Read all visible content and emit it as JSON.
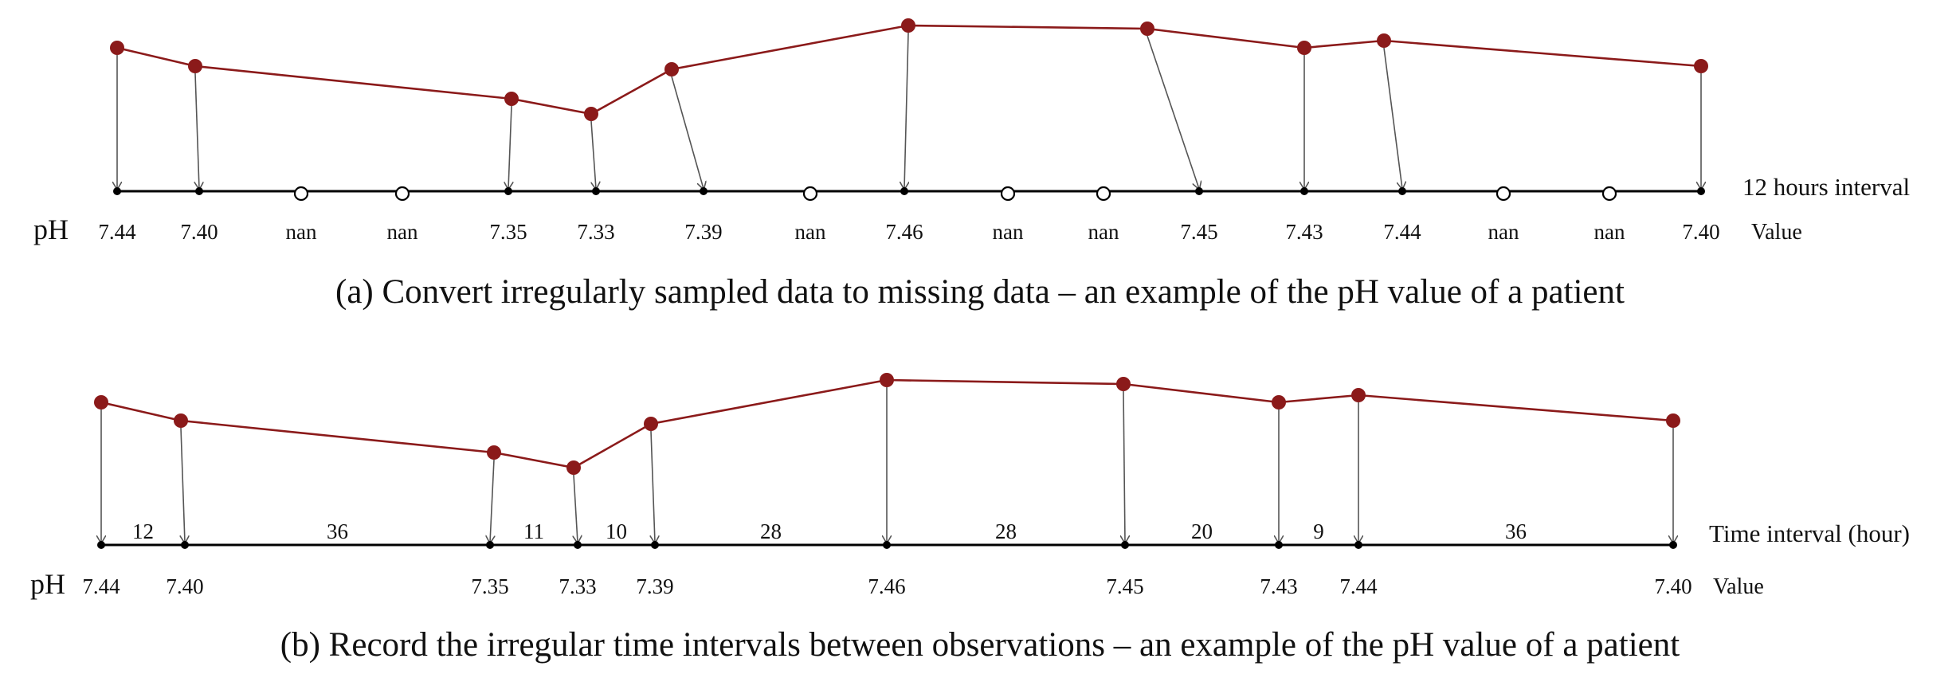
{
  "colors": {
    "series": "#8B1A1A",
    "axis": "#000000",
    "arrow": "#555555",
    "text": "#111111"
  },
  "panel_a": {
    "row_label": "pH",
    "axis_label": "12 hours interval",
    "value_label": "Value",
    "caption": "(a) Convert irregularly sampled data to missing data – an example of the pH value of a patient",
    "slots": [
      "7.44",
      "7.40",
      "nan",
      "nan",
      "7.35",
      "7.33",
      "7.39",
      "nan",
      "7.46",
      "nan",
      "nan",
      "7.45",
      "7.43",
      "7.44",
      "nan",
      "nan",
      "7.40"
    ]
  },
  "panel_b": {
    "row_label": "pH",
    "axis_label": "Time interval (hour)",
    "value_label": "Value",
    "caption": "(b) Record the irregular time intervals between observations – an example of the pH value of a patient",
    "values": [
      "7.44",
      "7.40",
      "7.35",
      "7.33",
      "7.39",
      "7.46",
      "7.45",
      "7.43",
      "7.44",
      "7.40"
    ],
    "intervals": [
      "12",
      "36",
      "11",
      "10",
      "28",
      "28",
      "20",
      "9",
      "36"
    ]
  }
}
